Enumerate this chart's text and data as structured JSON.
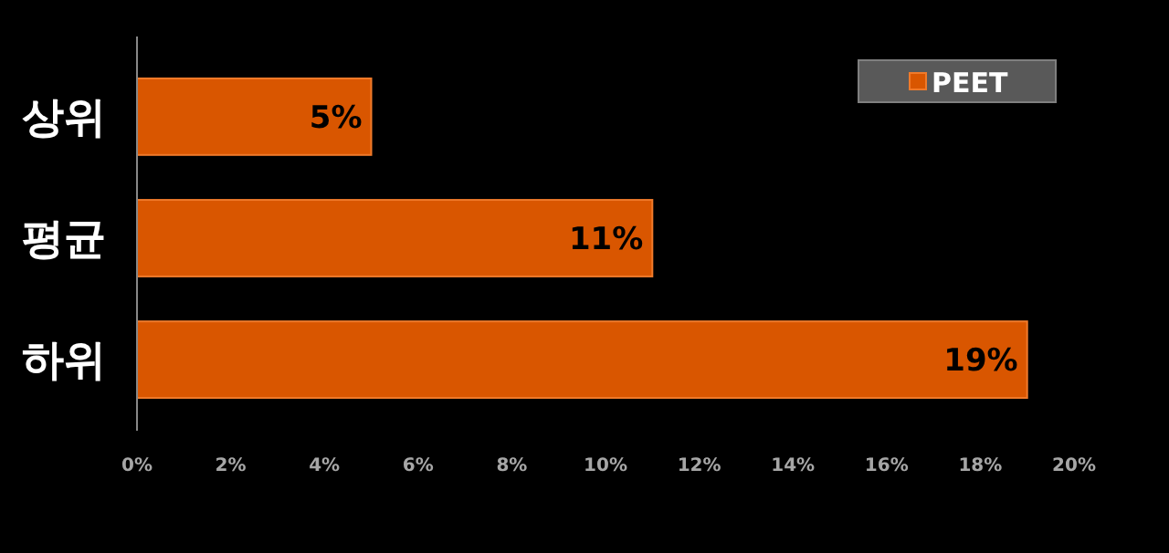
{
  "chart_data": {
    "type": "bar",
    "orientation": "horizontal",
    "categories": [
      "상위",
      "평균",
      "하위"
    ],
    "series": [
      {
        "name": "PEET",
        "color": "#d95600",
        "values": [
          5,
          11,
          19
        ],
        "value_labels": [
          "5%",
          "11%",
          "19%"
        ]
      }
    ],
    "xlim": [
      0,
      20
    ],
    "xticks": [
      {
        "value": 0,
        "label": "0%"
      },
      {
        "value": 2,
        "label": "2%"
      },
      {
        "value": 4,
        "label": "4%"
      },
      {
        "value": 6,
        "label": "6%"
      },
      {
        "value": 8,
        "label": "8%"
      },
      {
        "value": 10,
        "label": "10%"
      },
      {
        "value": 12,
        "label": "12%"
      },
      {
        "value": 14,
        "label": "14%"
      },
      {
        "value": 16,
        "label": "16%"
      },
      {
        "value": 18,
        "label": "18%"
      },
      {
        "value": 20,
        "label": "20%"
      }
    ],
    "legend": "top right",
    "grid": false
  }
}
